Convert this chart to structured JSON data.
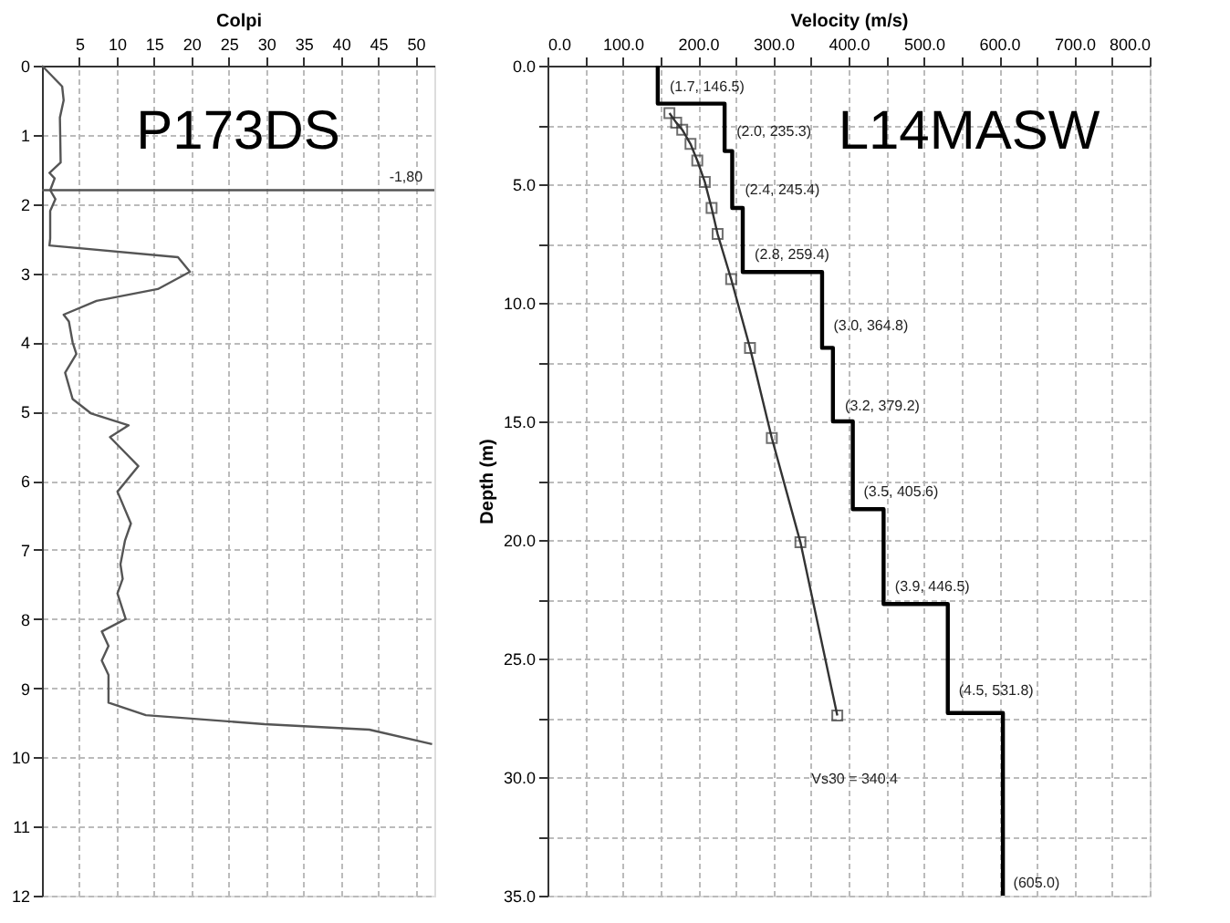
{
  "chart_data": [
    {
      "type": "line",
      "xlabel": "Colpi",
      "xlim": [
        0,
        52.5
      ],
      "ylim": [
        12,
        0
      ],
      "xticks": [
        5,
        10,
        15,
        20,
        25,
        30,
        35,
        40,
        45,
        50
      ],
      "yticks": [
        0,
        1,
        2,
        3,
        4,
        5,
        6,
        7,
        8,
        9,
        10,
        11,
        12
      ],
      "grid": true,
      "marker": "none",
      "annotations": [
        "P173DS",
        "-1,80"
      ],
      "ref_lines": [
        {
          "axis": "y",
          "value": 1.8
        }
      ],
      "series": [
        {
          "color": "#555555",
          "x": [
            0,
            2.7,
            2.9,
            2.4,
            2.5,
            1.0,
            1.7,
            1.1,
            1.8,
            1.1,
            1.1,
            1.0,
            18.2,
            19.8,
            15.5,
            7.3,
            2.9,
            3.6,
            4.1,
            4.6,
            3.1,
            4.1,
            6.6,
            11.6,
            9.1,
            12.9,
            10.1,
            11.9,
            11.1,
            10.5,
            10.8,
            10.1,
            11.2,
            8.0,
            8.9,
            8.0,
            8.9,
            8.9,
            13.9,
            29.8,
            43.8,
            52.2
          ],
          "values": [
            0,
            0.3,
            0.5,
            0.75,
            1.4,
            1.55,
            1.63,
            1.8,
            1.93,
            2.1,
            2.5,
            2.6,
            2.77,
            2.98,
            3.23,
            3.4,
            3.6,
            3.7,
            4.0,
            4.17,
            4.44,
            4.82,
            5.03,
            5.2,
            5.37,
            5.79,
            6.16,
            6.62,
            6.87,
            7.21,
            7.42,
            7.63,
            8.0,
            8.18,
            8.39,
            8.6,
            8.81,
            9.21,
            9.39,
            9.52,
            9.6,
            9.81
          ]
        }
      ]
    },
    {
      "type": "line",
      "xlabel": "Velocity (m/s)",
      "ylabel": "Depth (m)",
      "xlim": [
        0,
        800
      ],
      "ylim": [
        35,
        0
      ],
      "xticks": [
        {
          "value": 0,
          "label": "0.0"
        },
        {
          "value": 50,
          "label": null
        },
        {
          "value": 100,
          "label": "100.0"
        },
        {
          "value": 150,
          "label": null
        },
        {
          "value": 200,
          "label": "200.0"
        },
        {
          "value": 250,
          "label": null
        },
        {
          "value": 300,
          "label": "300.0"
        },
        {
          "value": 350,
          "label": null
        },
        {
          "value": 400,
          "label": "400.0"
        },
        {
          "value": 450,
          "label": null
        },
        {
          "value": 500,
          "label": "500.0"
        },
        {
          "value": 550,
          "label": null
        },
        {
          "value": 600,
          "label": "600.0"
        },
        {
          "value": 650,
          "label": null
        },
        {
          "value": 700,
          "label": "700.0"
        },
        {
          "value": 750,
          "label": null
        },
        {
          "value": 800,
          "label": "800.0"
        }
      ],
      "yticks": [
        {
          "value": 0,
          "label": "0.0"
        },
        {
          "value": 2.5,
          "label": null
        },
        {
          "value": 5,
          "label": "5.0"
        },
        {
          "value": 7.5,
          "label": null
        },
        {
          "value": 10,
          "label": "10.0"
        },
        {
          "value": 12.5,
          "label": null
        },
        {
          "value": 15,
          "label": "15.0"
        },
        {
          "value": 17.5,
          "label": null
        },
        {
          "value": 20,
          "label": "20.0"
        },
        {
          "value": 22.5,
          "label": null
        },
        {
          "value": 25,
          "label": "25.0"
        },
        {
          "value": 27.5,
          "label": null
        },
        {
          "value": 30,
          "label": "30.0"
        },
        {
          "value": 32.5,
          "label": null
        },
        {
          "value": 35,
          "label": "35.0"
        }
      ],
      "grid": true,
      "annotations": [
        "L14MASW",
        "(1.7, 146.5)",
        "(2.0, 235.3)",
        "(2.4, 245.4)",
        "(2.8, 259.4)",
        "(3.0, 364.8)",
        "(3.2, 379.2)",
        "(3.5, 405.6)",
        "(3.9, 446.5)",
        "(4.5, 531.8)",
        "Vs30 = 340.4",
        "(605.0)"
      ],
      "series": [
        {
          "color": "#000000",
          "x": [
            146.5,
            146.5,
            235.3,
            235.3,
            245.4,
            245.4,
            259.4,
            259.4,
            364.8,
            364.8,
            379.2,
            379.2,
            405.6,
            405.6,
            446.5,
            446.5,
            531.8,
            531.8,
            605.0,
            605.0
          ],
          "values": [
            0,
            1.6,
            1.6,
            3.6,
            3.6,
            6.0,
            6.0,
            8.7,
            8.7,
            11.9,
            11.9,
            15.0,
            15.0,
            18.7,
            18.7,
            22.7,
            22.7,
            27.3,
            27.3,
            35
          ]
        },
        {
          "color": "#333333",
          "marker": "square",
          "x": [
            162,
            171,
            179,
            190,
            199,
            209,
            218,
            226,
            244,
            269,
            298,
            336,
            385
          ],
          "values": [
            2.0,
            2.4,
            2.7,
            3.3,
            4.0,
            4.9,
            6.0,
            7.1,
            9.0,
            11.9,
            15.7,
            20.1,
            27.4
          ]
        }
      ]
    }
  ]
}
